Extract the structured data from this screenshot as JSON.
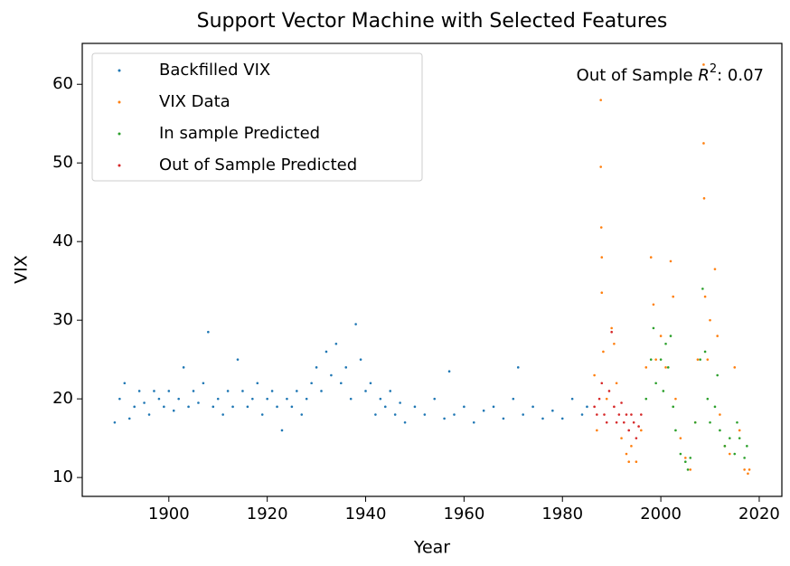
{
  "chart_data": {
    "type": "scatter",
    "title": "Support Vector Machine with Selected Features",
    "x_label": "Year",
    "y_label": "VIX",
    "annotation": {
      "prefix": "Out of Sample",
      "symbol": "R",
      "superscript": "2",
      "suffix": ": 0.07"
    },
    "xlim": [
      1882.4,
      2024.6
    ],
    "xticks": [
      1900,
      1920,
      1940,
      1960,
      1980,
      2000,
      2020
    ],
    "ylim": [
      7.6,
      65.2
    ],
    "yticks": [
      10,
      20,
      30,
      40,
      50,
      60
    ],
    "legend": "upper left",
    "series": [
      {
        "name": "Backfilled VIX",
        "color": "#1f77b4",
        "x": [
          1889,
          1890,
          1891,
          1892,
          1893,
          1894,
          1895,
          1896,
          1897,
          1898,
          1899,
          1900,
          1901,
          1902,
          1903,
          1904,
          1905,
          1906,
          1907,
          1908,
          1909,
          1910,
          1911,
          1912,
          1913,
          1914,
          1915,
          1916,
          1917,
          1918,
          1919,
          1920,
          1921,
          1922,
          1923,
          1924,
          1925,
          1926,
          1927,
          1928,
          1929,
          1930,
          1931,
          1932,
          1933,
          1934,
          1935,
          1936,
          1937,
          1938,
          1939,
          1940,
          1941,
          1942,
          1943,
          1944,
          1945,
          1946,
          1947,
          1948,
          1950,
          1952,
          1954,
          1956,
          1957,
          1958,
          1960,
          1962,
          1964,
          1966,
          1968,
          1970,
          1971,
          1972,
          1974,
          1976,
          1978,
          1980,
          1982,
          1984,
          1985
        ],
        "values": [
          17,
          20,
          22,
          17.5,
          19,
          21,
          19.5,
          18,
          21,
          20,
          19,
          21,
          18.5,
          20,
          24,
          19,
          21,
          19.5,
          22,
          28.5,
          19,
          20,
          18,
          21,
          19,
          25,
          21,
          19,
          20,
          22,
          18,
          20,
          21,
          19,
          16,
          20,
          19,
          21,
          18,
          20,
          22,
          24,
          21,
          26,
          23,
          27,
          22,
          24,
          20,
          29.5,
          25,
          21,
          22,
          18,
          20,
          19,
          21,
          18,
          19.5,
          17,
          19,
          18,
          20,
          17.5,
          23.5,
          18,
          19,
          17,
          18.5,
          19,
          17.5,
          20,
          24,
          18,
          19,
          17.5,
          18.5,
          17.5,
          20,
          18,
          19
        ]
      },
      {
        "name": "VIX Data",
        "color": "#ff7f0e",
        "x": [
          1986.5,
          1987,
          1987.8,
          1987.8,
          1987.9,
          1988,
          1988,
          1988.3,
          1989,
          1990,
          1990.5,
          1991,
          1992,
          1993,
          1993.5,
          1994,
          1995,
          1996,
          1997,
          1998,
          1998.5,
          1999,
          2000,
          2001,
          2002,
          2002.5,
          2003,
          2004,
          2005,
          2006,
          2007,
          2007.5,
          2008.7,
          2008.7,
          2008.8,
          2009,
          2009.5,
          2010,
          2011,
          2011.5,
          2012,
          2013,
          2014,
          2015,
          2016,
          2017,
          2017.7,
          2018
        ],
        "values": [
          23,
          16,
          58,
          49.5,
          41.8,
          38,
          33.5,
          26,
          20,
          29,
          27,
          22,
          15,
          13,
          12,
          14,
          12,
          16,
          24,
          38,
          32,
          25,
          28,
          24,
          37.5,
          33,
          20,
          15,
          12.5,
          11,
          17,
          25,
          62.5,
          52.5,
          45.5,
          33,
          25,
          30,
          36.5,
          28,
          18,
          14,
          13,
          24,
          16,
          11,
          10.5,
          11
        ]
      },
      {
        "name": "In sample Predicted",
        "color": "#2ca02c",
        "x": [
          1997,
          1998,
          1998.5,
          1999,
          2000,
          2000.5,
          2001,
          2001.5,
          2002,
          2002.5,
          2003,
          2004,
          2005,
          2005.5,
          2006,
          2007,
          2008,
          2008.5,
          2009,
          2009.5,
          2010,
          2011,
          2011.5,
          2012,
          2013,
          2014,
          2015,
          2015.5,
          2016,
          2017,
          2017.5
        ],
        "values": [
          20,
          25,
          29,
          22,
          25,
          21,
          27,
          24,
          28,
          19,
          16,
          13,
          12,
          11,
          12.5,
          17,
          25,
          34,
          26,
          20,
          17,
          19,
          23,
          16,
          14,
          15,
          13,
          17,
          15,
          12.5,
          14
        ]
      },
      {
        "name": "Out of Sample Predicted",
        "color": "#d62728",
        "x": [
          1986.5,
          1987,
          1987.5,
          1988,
          1988.5,
          1989,
          1989.5,
          1990,
          1990.5,
          1991,
          1991.5,
          1992,
          1992.5,
          1993,
          1993.5,
          1994,
          1994.5,
          1995,
          1995.5,
          1996
        ],
        "values": [
          19,
          18,
          20,
          22,
          18,
          17,
          21,
          28.5,
          19,
          17,
          18,
          19.5,
          17,
          18,
          16,
          18,
          17,
          15,
          16.5,
          18
        ]
      }
    ]
  }
}
